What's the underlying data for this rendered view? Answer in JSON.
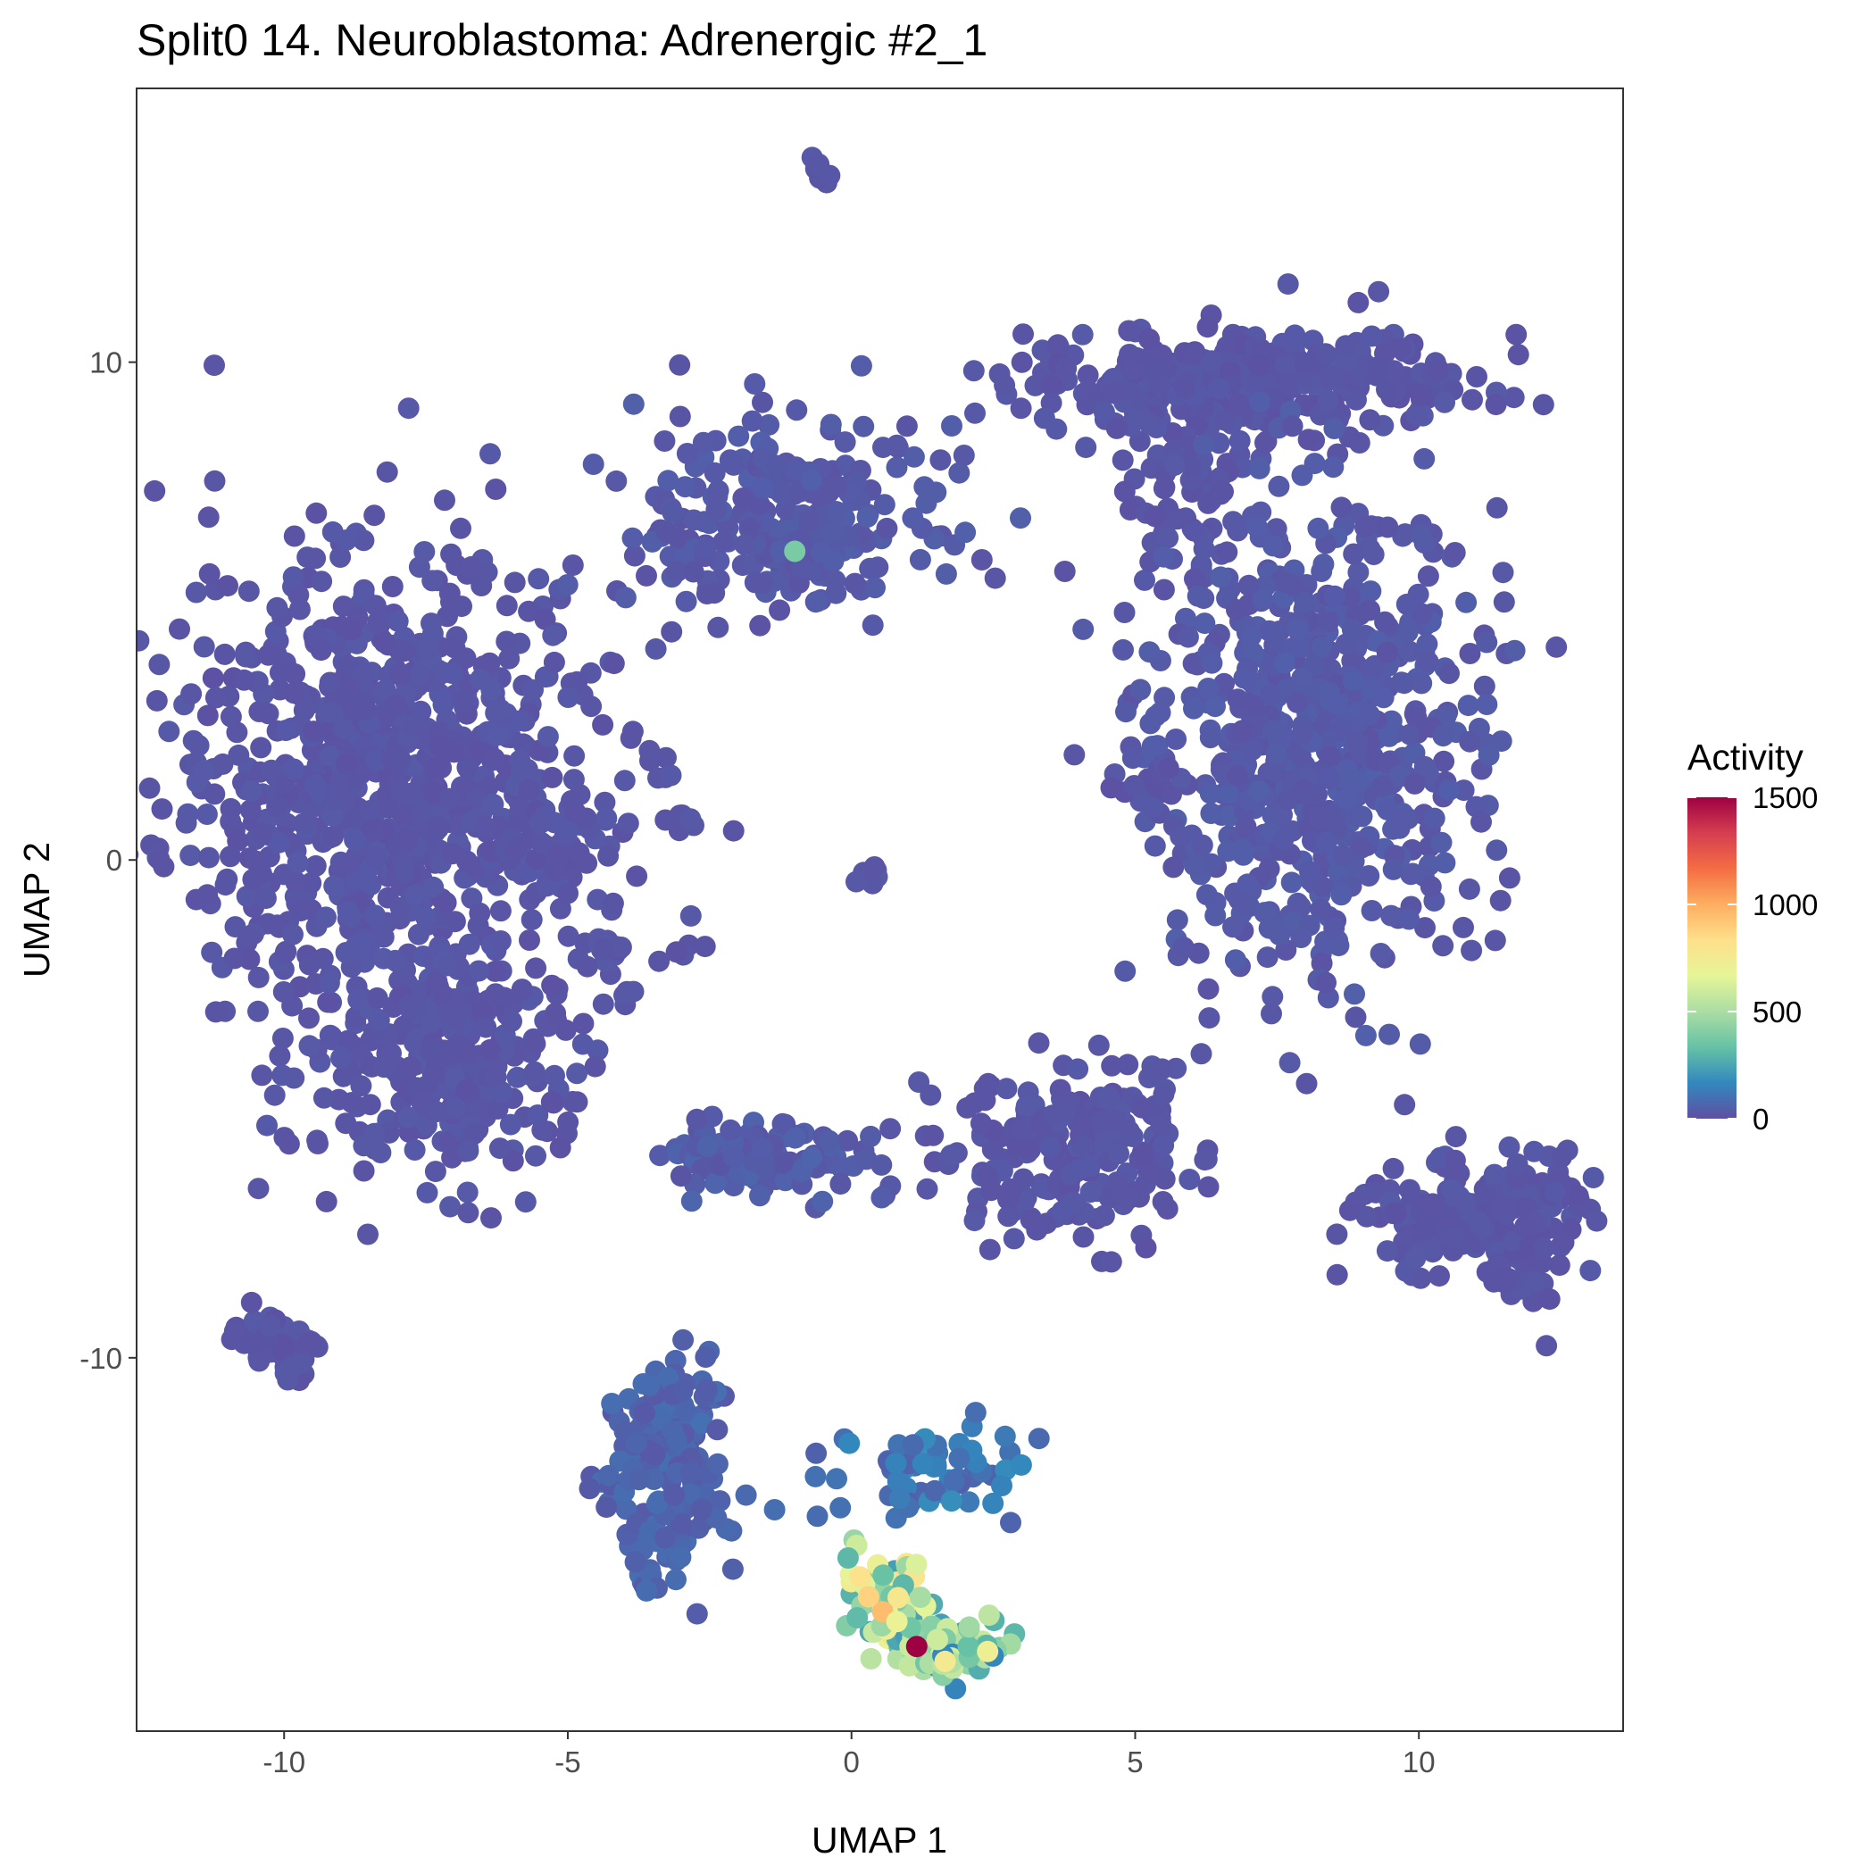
{
  "chart_data": {
    "type": "scatter",
    "title": "Split0 14. Neuroblastoma: Adrenergic #2_1",
    "xlabel": "UMAP 1",
    "ylabel": "UMAP 2",
    "xlim": [
      -12.6,
      13.6
    ],
    "ylim": [
      -17.5,
      15.5
    ],
    "x_ticks": [
      -10,
      -5,
      0,
      5,
      10
    ],
    "y_ticks": [
      -10,
      0,
      10
    ],
    "x_tick_labels": [
      "-10",
      "-5",
      "0",
      "5",
      "10"
    ],
    "y_tick_labels": [
      "-10",
      "0",
      "10"
    ],
    "grid": false,
    "legend": {
      "title": "Activity",
      "position": "right",
      "min": 0,
      "max": 1500,
      "ticks": [
        0,
        500,
        1000,
        1500
      ],
      "tick_labels": [
        "0",
        "500",
        "1000",
        "1500"
      ],
      "colors": [
        "#5E4FA2",
        "#3288BD",
        "#66C2A5",
        "#ABDDA4",
        "#E6F598",
        "#FEE08B",
        "#FDAE61",
        "#F46D43",
        "#D53E4F",
        "#9E0142"
      ]
    },
    "clusters": [
      {
        "cx": -8.3,
        "cy": 1.5,
        "sx": 1.9,
        "sy": 2.4,
        "n": 900,
        "activity": 20
      },
      {
        "cx": -7.0,
        "cy": -4.0,
        "sx": 1.2,
        "sy": 1.2,
        "n": 260,
        "activity": 20
      },
      {
        "cx": -5.2,
        "cy": 0.2,
        "sx": 0.6,
        "sy": 0.5,
        "n": 40,
        "activity": 20
      },
      {
        "cx": -1.1,
        "cy": 6.8,
        "sx": 1.3,
        "sy": 1.1,
        "n": 260,
        "activity": 30
      },
      {
        "cx": -0.6,
        "cy": 13.8,
        "sx": 0.15,
        "sy": 0.2,
        "n": 6,
        "activity": 20
      },
      {
        "cx": 7.0,
        "cy": 9.6,
        "sx": 1.9,
        "sy": 0.55,
        "n": 360,
        "activity": 20
      },
      {
        "cx": 5.8,
        "cy": 7.5,
        "sx": 0.6,
        "sy": 1.0,
        "n": 80,
        "activity": 20
      },
      {
        "cx": 8.2,
        "cy": 2.5,
        "sx": 1.4,
        "sy": 2.4,
        "n": 700,
        "activity": 30
      },
      {
        "cx": 5.2,
        "cy": 1.6,
        "sx": 0.5,
        "sy": 0.35,
        "n": 22,
        "activity": 20
      },
      {
        "cx": 3.9,
        "cy": -5.9,
        "sx": 1.2,
        "sy": 0.9,
        "n": 220,
        "activity": 20
      },
      {
        "cx": 10.9,
        "cy": -7.1,
        "sx": 1.0,
        "sy": 0.6,
        "n": 150,
        "activity": 20
      },
      {
        "cx": 12.0,
        "cy": -7.5,
        "sx": 0.35,
        "sy": 0.9,
        "n": 50,
        "activity": 20
      },
      {
        "cx": -1.6,
        "cy": -6.0,
        "sx": 0.9,
        "sy": 0.45,
        "n": 110,
        "activity": 40
      },
      {
        "cx": -10.1,
        "cy": -9.8,
        "sx": 0.38,
        "sy": 0.3,
        "n": 55,
        "activity": 20
      },
      {
        "cx": -3.3,
        "cy": -12.3,
        "sx": 0.55,
        "sy": 1.1,
        "n": 170,
        "activity": 60
      },
      {
        "cx": 1.3,
        "cy": -12.3,
        "sx": 0.8,
        "sy": 0.5,
        "n": 70,
        "activity": 120
      },
      {
        "cx": 0.7,
        "cy": -14.9,
        "sx": 0.4,
        "sy": 0.45,
        "n": 70,
        "activity": 520
      },
      {
        "cx": 1.8,
        "cy": -15.8,
        "sx": 0.45,
        "sy": 0.25,
        "n": 90,
        "activity": 380
      },
      {
        "cx": -3.0,
        "cy": 0.8,
        "sx": 0.18,
        "sy": 0.15,
        "n": 6,
        "activity": 20
      },
      {
        "cx": -3.4,
        "cy": 1.8,
        "sx": 0.1,
        "sy": 0.1,
        "n": 2,
        "activity": 20
      },
      {
        "cx": 0.3,
        "cy": -0.3,
        "sx": 0.15,
        "sy": 0.12,
        "n": 8,
        "activity": 20
      },
      {
        "cx": -4.3,
        "cy": -1.8,
        "sx": 0.45,
        "sy": 0.2,
        "n": 10,
        "activity": 20
      },
      {
        "cx": -3.8,
        "cy": -2.7,
        "sx": 0.2,
        "sy": 0.12,
        "n": 5,
        "activity": 20
      },
      {
        "cx": -3.2,
        "cy": -1.8,
        "sx": 0.25,
        "sy": 0.3,
        "n": 5,
        "activity": 20
      }
    ],
    "highlight_points": [
      {
        "x": -1.0,
        "y": 6.2,
        "activity": 380
      },
      {
        "x": 1.15,
        "y": -15.8,
        "activity": 1520
      },
      {
        "x": 0.55,
        "y": -15.1,
        "activity": 950
      },
      {
        "x": 0.3,
        "y": -14.8,
        "activity": 880
      },
      {
        "x": 0.15,
        "y": -14.4,
        "activity": 820
      },
      {
        "x": 1.65,
        "y": -16.1,
        "activity": 760
      },
      {
        "x": 2.4,
        "y": -15.9,
        "activity": 720
      },
      {
        "x": 0.8,
        "y": -15.3,
        "activity": 700
      }
    ]
  }
}
